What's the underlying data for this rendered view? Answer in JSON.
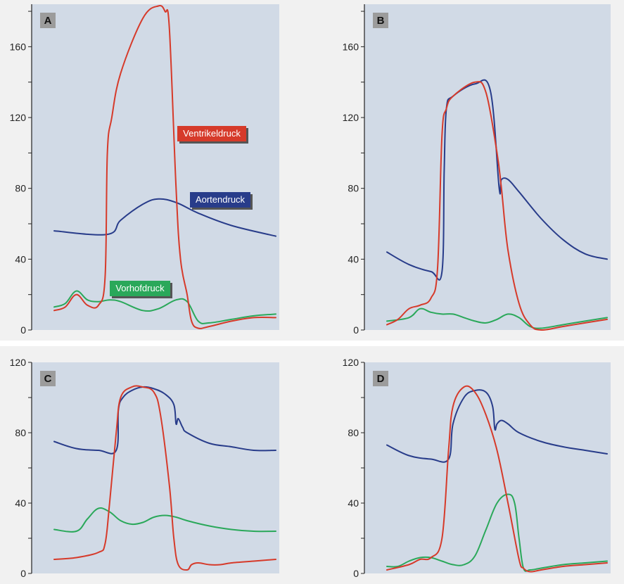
{
  "colors": {
    "background": "#f1f1f1",
    "plot_area": "#d1dae6",
    "ventricle": "#d63a2a",
    "aorta": "#283c8a",
    "atrium": "#2aa85a",
    "letter_box": "#9c9c9c"
  },
  "chart_data": [
    {
      "panel": "A",
      "type": "line",
      "ylim": [
        0,
        180
      ],
      "yticks": [
        "0",
        "40",
        "80",
        "120",
        "160"
      ],
      "labels": [
        {
          "series": "ventricle",
          "text": "Ventrikeldruck"
        },
        {
          "series": "aorta",
          "text": "Aortendruck"
        },
        {
          "series": "atrium",
          "text": "Vorhofdruck"
        }
      ],
      "series": [
        {
          "key": "ventricle",
          "x": [
            0,
            5,
            10,
            15,
            20,
            23,
            24,
            26,
            30,
            40,
            47,
            50,
            52,
            55,
            57,
            60,
            62,
            65,
            70,
            80,
            90,
            100
          ],
          "y": [
            11,
            13,
            20,
            14,
            14,
            30,
            100,
            120,
            145,
            176,
            183,
            180,
            170,
            80,
            40,
            20,
            5,
            1,
            2,
            5,
            7,
            7
          ]
        },
        {
          "key": "aorta",
          "x": [
            0,
            24,
            30,
            40,
            47,
            55,
            65,
            80,
            100
          ],
          "y": [
            56,
            54,
            62,
            71,
            74,
            72,
            66,
            59,
            53
          ]
        },
        {
          "key": "atrium",
          "x": [
            0,
            5,
            10,
            15,
            20,
            25,
            30,
            40,
            47,
            55,
            60,
            65,
            70,
            80,
            90,
            100
          ],
          "y": [
            13,
            15,
            22,
            17,
            16,
            17,
            16,
            11,
            12,
            17,
            16,
            5,
            4,
            6,
            8,
            9
          ]
        }
      ]
    },
    {
      "panel": "B",
      "type": "line",
      "ylim": [
        0,
        180
      ],
      "yticks": [
        "0",
        "40",
        "80",
        "120",
        "160"
      ],
      "labels": [],
      "series": [
        {
          "key": "ventricle",
          "x": [
            0,
            5,
            10,
            15,
            20,
            23,
            25,
            27,
            30,
            40,
            45,
            50,
            52,
            55,
            60,
            65,
            70,
            80,
            90,
            100
          ],
          "y": [
            3,
            6,
            12,
            14,
            18,
            35,
            110,
            125,
            132,
            140,
            134,
            100,
            80,
            45,
            15,
            3,
            0,
            2,
            4,
            6
          ]
        },
        {
          "key": "aorta",
          "x": [
            0,
            10,
            20,
            25,
            26,
            27,
            30,
            40,
            47,
            51,
            52,
            55,
            60,
            70,
            80,
            90,
            100
          ],
          "y": [
            44,
            37,
            33,
            33,
            90,
            125,
            132,
            139,
            135,
            80,
            85,
            85,
            78,
            63,
            51,
            43,
            40
          ]
        },
        {
          "key": "atrium",
          "x": [
            0,
            10,
            15,
            20,
            25,
            30,
            35,
            40,
            45,
            50,
            55,
            60,
            65,
            70,
            80,
            90,
            100
          ],
          "y": [
            5,
            7,
            12,
            10,
            9,
            9,
            7,
            5,
            4,
            6,
            9,
            7,
            2,
            1,
            3,
            5,
            7
          ]
        }
      ]
    },
    {
      "panel": "C",
      "type": "line",
      "ylim": [
        0,
        120
      ],
      "yticks": [
        "0",
        "40",
        "80",
        "120"
      ],
      "labels": [],
      "series": [
        {
          "key": "ventricle",
          "x": [
            0,
            10,
            20,
            23,
            25,
            28,
            30,
            35,
            40,
            45,
            48,
            52,
            54,
            56,
            60,
            62,
            65,
            70,
            75,
            80,
            90,
            100
          ],
          "y": [
            8,
            9,
            12,
            17,
            40,
            80,
            100,
            106,
            106,
            103,
            90,
            50,
            20,
            5,
            2,
            5,
            6,
            5,
            5,
            6,
            7,
            8
          ]
        },
        {
          "key": "aorta",
          "x": [
            0,
            10,
            20,
            28,
            29,
            31,
            35,
            40,
            45,
            50,
            54,
            55,
            56,
            58,
            60,
            70,
            80,
            90,
            100
          ],
          "y": [
            75,
            71,
            70,
            70,
            93,
            100,
            104,
            106,
            105,
            102,
            96,
            85,
            88,
            83,
            80,
            74,
            72,
            70,
            70
          ]
        },
        {
          "key": "atrium",
          "x": [
            0,
            10,
            15,
            20,
            25,
            30,
            35,
            40,
            45,
            50,
            55,
            60,
            70,
            80,
            90,
            100
          ],
          "y": [
            25,
            24,
            31,
            37,
            35,
            30,
            28,
            29,
            32,
            33,
            32,
            30,
            27,
            25,
            24,
            24
          ]
        }
      ]
    },
    {
      "panel": "D",
      "type": "line",
      "ylim": [
        0,
        120
      ],
      "yticks": [
        "0",
        "40",
        "80",
        "120"
      ],
      "labels": [],
      "series": [
        {
          "key": "ventricle",
          "x": [
            0,
            10,
            15,
            20,
            25,
            28,
            30,
            35,
            40,
            45,
            50,
            55,
            60,
            62,
            65,
            70,
            80,
            90,
            100
          ],
          "y": [
            2,
            5,
            8,
            9,
            20,
            70,
            95,
            106,
            103,
            90,
            70,
            40,
            8,
            3,
            1,
            2,
            4,
            5,
            6
          ]
        },
        {
          "key": "aorta",
          "x": [
            0,
            10,
            20,
            28,
            30,
            35,
            40,
            45,
            48,
            49,
            50,
            52,
            55,
            60,
            70,
            80,
            90,
            100
          ],
          "y": [
            73,
            67,
            65,
            65,
            85,
            100,
            104,
            103,
            95,
            82,
            85,
            87,
            85,
            80,
            75,
            72,
            70,
            68
          ]
        },
        {
          "key": "atrium",
          "x": [
            0,
            5,
            10,
            15,
            20,
            25,
            30,
            35,
            40,
            45,
            50,
            55,
            58,
            60,
            62,
            65,
            70,
            80,
            90,
            100
          ],
          "y": [
            4,
            4,
            7,
            9,
            9,
            7,
            5,
            5,
            10,
            25,
            40,
            45,
            40,
            20,
            3,
            2,
            3,
            5,
            6,
            7
          ]
        }
      ]
    }
  ]
}
